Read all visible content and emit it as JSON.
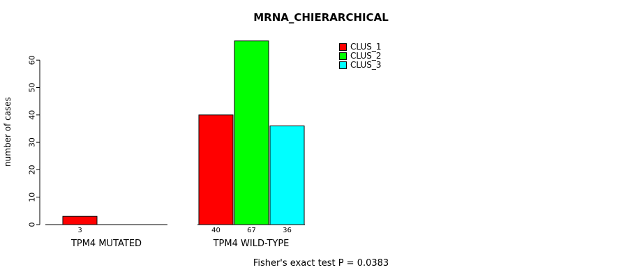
{
  "title": "MRNA_CHIERARCHICAL",
  "footer": "Fisher's exact test P = 0.0383",
  "y_axis": {
    "label": "number of cases"
  },
  "legend": {
    "items": [
      {
        "label": "CLUS_1",
        "color": "#FF0000"
      },
      {
        "label": "CLUS_2",
        "color": "#00FF00"
      },
      {
        "label": "CLUS_3",
        "color": "#00FFFF"
      }
    ]
  },
  "chart_data": {
    "type": "bar",
    "title": "MRNA_CHIERARCHICAL",
    "ylabel": "number of cases",
    "xlabel": "",
    "ylim": [
      0,
      67
    ],
    "yticks": [
      0,
      10,
      20,
      30,
      40,
      50,
      60
    ],
    "grid": false,
    "legend_position": "top-right",
    "legend_entries": [
      "CLUS_1",
      "CLUS_2",
      "CLUS_3"
    ],
    "annotation": "Fisher's exact test P = 0.0383",
    "groups": [
      {
        "category": "TPM4 MUTATED",
        "bars": [
          {
            "series": "CLUS_1",
            "value": 3,
            "color": "#FF0000"
          }
        ]
      },
      {
        "category": "TPM4 WILD-TYPE",
        "bars": [
          {
            "series": "CLUS_1",
            "value": 40,
            "color": "#FF0000"
          },
          {
            "series": "CLUS_2",
            "value": 67,
            "color": "#00FF00"
          },
          {
            "series": "CLUS_3",
            "value": 36,
            "color": "#00FFFF"
          }
        ]
      }
    ]
  }
}
